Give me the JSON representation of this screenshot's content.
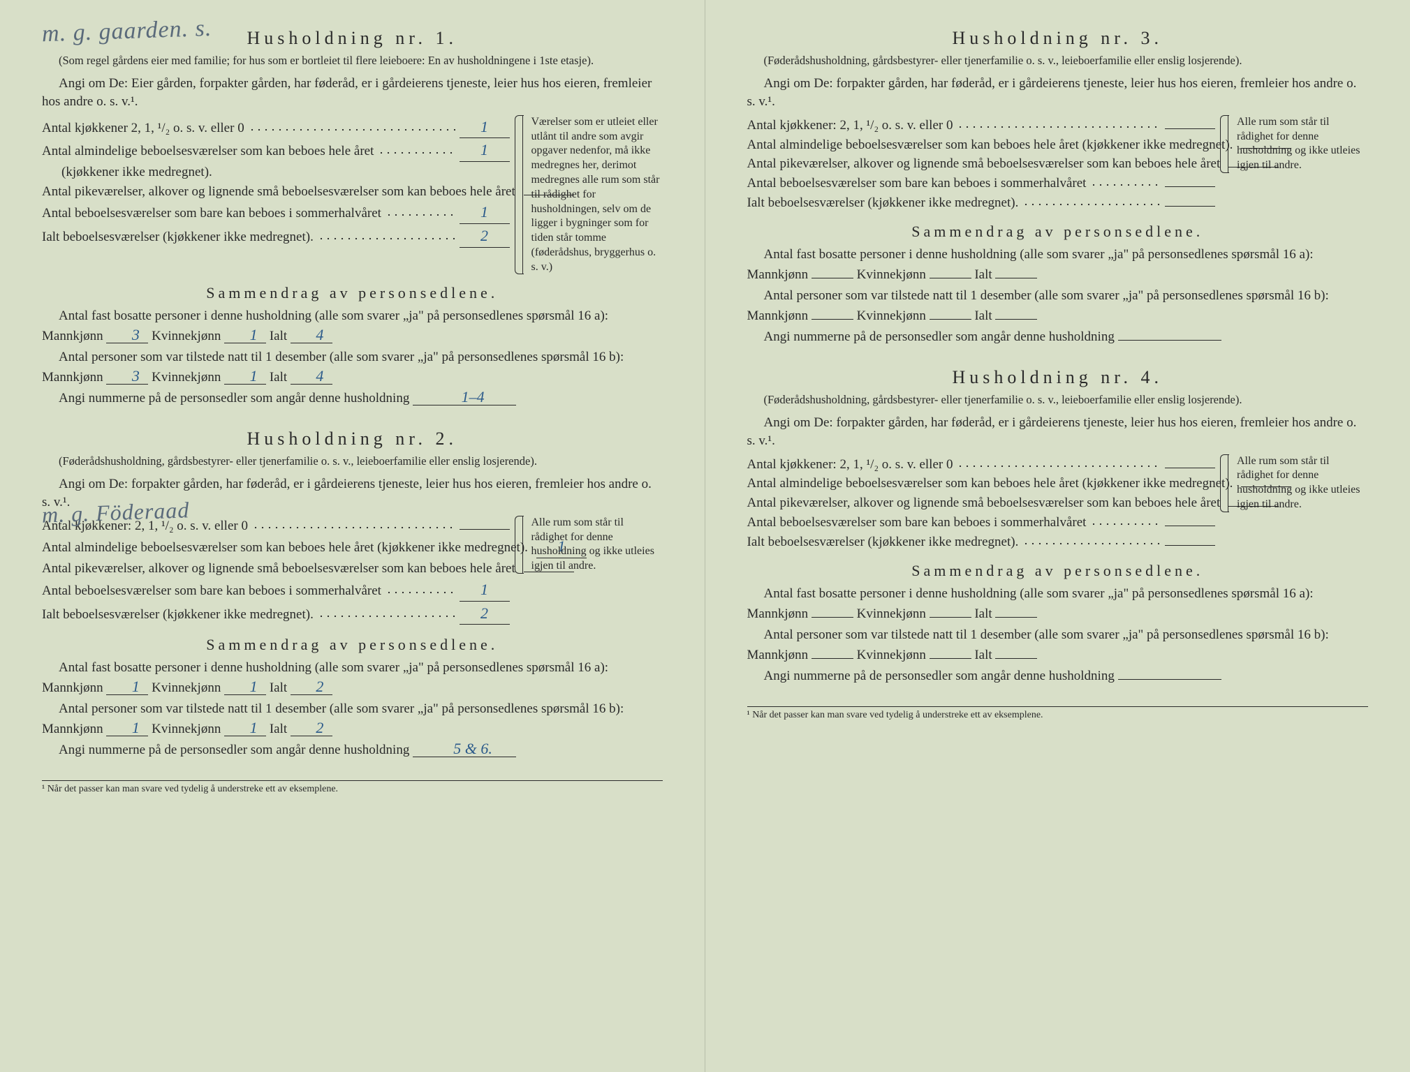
{
  "handwriting": {
    "top1": "m. g. gaarden. s.",
    "top2": "m. g. Föderaad"
  },
  "colors": {
    "paper": "#d8dfc8",
    "ink": "#2a2a2a",
    "pen": "#2b5a8a"
  },
  "households": [
    {
      "title": "Husholdning nr. 1.",
      "note": "(Som regel gårdens eier med familie; for hus som er bortleiet til flere leieboere: En av husholdningene i 1ste etasje).",
      "angi": "Angi om De: Eier gården, forpakter gården, har føderåd, er i gårdeierens tjeneste, leier hus hos eieren, fremleier hos andre o. s. v.¹.",
      "rows": [
        {
          "label": "Antal kjøkkener 2, 1, ¹/₂ o. s. v. eller 0",
          "val": "1"
        },
        {
          "label": "Antal almindelige beboelsesværelser som kan beboes hele året",
          "sub": "(kjøkkener ikke medregnet).",
          "val": "1"
        },
        {
          "label": "Antal pikeværelser, alkover og lignende små beboelsesværelser som kan beboes hele året",
          "val": ""
        },
        {
          "label": "Antal beboelsesværelser som bare kan beboes i sommerhalvåret",
          "val": "1"
        },
        {
          "label_total": "Ialt beboelsesværelser (kjøkkener ikke medregnet).",
          "val": "2"
        }
      ],
      "sidebox": "Værelser som er utleiet eller utlånt til andre som avgir opgaver nedenfor, må ikke medregnes her, derimot medregnes alle rum som står til rådighet for husholdningen, selv om de ligger i bygninger som for tiden står tomme (føderådshus, bryggerhus o. s. v.)",
      "sammendrag_title": "Sammendrag av personsedlene.",
      "p16a_text": "Antal fast bosatte personer i denne husholdning (alle som svarer „ja\" på personsedlenes spørsmål 16 a):",
      "p16a": {
        "m": "3",
        "k": "1",
        "i": "4"
      },
      "p16b_text": "Antal personer som var tilstede natt til 1 desember (alle som svarer „ja\" på personsedlenes spørsmål 16 b):",
      "p16b": {
        "m": "3",
        "k": "1",
        "i": "4"
      },
      "nummer_label": "Angi nummerne på de personsedler som angår denne husholdning",
      "nummer": "1–4"
    },
    {
      "title": "Husholdning nr. 2.",
      "note": "(Føderådshusholdning, gårdsbestyrer- eller tjenerfamilie o. s. v., leieboerfamilie eller enslig losjerende).",
      "angi": "Angi om De: forpakter gården, har føderåd, er i gårdeierens tjeneste, leier hus hos eieren, fremleier hos andre o. s. v.¹.",
      "rows": [
        {
          "label": "Antal kjøkkener: 2, 1, ¹/₂ o. s. v. eller 0",
          "val": ""
        },
        {
          "label": "Antal almindelige beboelsesværelser som kan beboes hele året (kjøkkener ikke medregnet).",
          "val": "1"
        },
        {
          "label": "Antal pikeværelser, alkover og lignende små beboelsesværelser som kan beboes hele året",
          "val": ""
        },
        {
          "label": "Antal beboelsesværelser som bare kan beboes i sommerhalvåret",
          "val": "1"
        },
        {
          "label_total": "Ialt beboelsesværelser (kjøkkener ikke medregnet).",
          "val": "2"
        }
      ],
      "sidebox": "Alle rum som står til rådighet for denne husholdning og ikke utleies igjen til andre.",
      "sammendrag_title": "Sammendrag av personsedlene.",
      "p16a_text": "Antal fast bosatte personer i denne husholdning (alle som svarer „ja\" på personsedlenes spørsmål 16 a):",
      "p16a": {
        "m": "1",
        "k": "1",
        "i": "2"
      },
      "p16b_text": "Antal personer som var tilstede natt til 1 desember (alle som svarer „ja\" på personsedlenes spørsmål 16 b):",
      "p16b": {
        "m": "1",
        "k": "1",
        "i": "2"
      },
      "nummer_label": "Angi nummerne på de personsedler som angår denne husholdning",
      "nummer": "5 & 6."
    },
    {
      "title": "Husholdning nr. 3.",
      "note": "(Føderådshusholdning, gårdsbestyrer- eller tjenerfamilie o. s. v., leieboerfamilie eller enslig losjerende).",
      "angi": "Angi om De: forpakter gården, har føderåd, er i gårdeierens tjeneste, leier hus hos eieren, fremleier hos andre o. s. v.¹.",
      "rows": [
        {
          "label": "Antal kjøkkener: 2, 1, ¹/₂ o. s. v. eller 0",
          "val": ""
        },
        {
          "label": "Antal almindelige beboelsesværelser som kan beboes hele året (kjøkkener ikke medregnet).",
          "val": ""
        },
        {
          "label": "Antal pikeværelser, alkover og lignende små beboelsesværelser som kan beboes hele året",
          "val": ""
        },
        {
          "label": "Antal beboelsesværelser som bare kan beboes i sommerhalvåret",
          "val": ""
        },
        {
          "label_total": "Ialt beboelsesværelser (kjøkkener ikke medregnet).",
          "val": ""
        }
      ],
      "sidebox": "Alle rum som står til rådighet for denne husholdning og ikke utleies igjen til andre.",
      "sammendrag_title": "Sammendrag av personsedlene.",
      "p16a_text": "Antal fast bosatte personer i denne husholdning (alle som svarer „ja\" på personsedlenes spørsmål 16 a):",
      "p16a": {
        "m": "",
        "k": "",
        "i": ""
      },
      "p16b_text": "Antal personer som var tilstede natt til 1 desember (alle som svarer „ja\" på personsedlenes spørsmål 16 b):",
      "p16b": {
        "m": "",
        "k": "",
        "i": ""
      },
      "nummer_label": "Angi nummerne på de personsedler som angår denne husholdning",
      "nummer": ""
    },
    {
      "title": "Husholdning nr. 4.",
      "note": "(Føderådshusholdning, gårdsbestyrer- eller tjenerfamilie o. s. v., leieboerfamilie eller enslig losjerende).",
      "angi": "Angi om De: forpakter gården, har føderåd, er i gårdeierens tjeneste, leier hus hos eieren, fremleier hos andre o. s. v.¹.",
      "rows": [
        {
          "label": "Antal kjøkkener: 2, 1, ¹/₂ o. s. v. eller 0",
          "val": ""
        },
        {
          "label": "Antal almindelige beboelsesværelser som kan beboes hele året (kjøkkener ikke medregnet).",
          "val": ""
        },
        {
          "label": "Antal pikeværelser, alkover og lignende små beboelsesværelser som kan beboes hele året",
          "val": ""
        },
        {
          "label": "Antal beboelsesværelser som bare kan beboes i sommerhalvåret",
          "val": ""
        },
        {
          "label_total": "Ialt beboelsesværelser (kjøkkener ikke medregnet).",
          "val": ""
        }
      ],
      "sidebox": "Alle rum som står til rådighet for denne husholdning og ikke utleies igjen til andre.",
      "sammendrag_title": "Sammendrag av personsedlene.",
      "p16a_text": "Antal fast bosatte personer i denne husholdning (alle som svarer „ja\" på personsedlenes spørsmål 16 a):",
      "p16a": {
        "m": "",
        "k": "",
        "i": ""
      },
      "p16b_text": "Antal personer som var tilstede natt til 1 desember (alle som svarer „ja\" på personsedlenes spørsmål 16 b):",
      "p16b": {
        "m": "",
        "k": "",
        "i": ""
      },
      "nummer_label": "Angi nummerne på de personsedler som angår denne husholdning",
      "nummer": ""
    }
  ],
  "labels": {
    "mann": "Mannkjønn",
    "kvinne": "Kvinnekjønn",
    "ialt": "Ialt"
  },
  "footnote": "¹ Når det passer kan man svare ved tydelig å understreke ett av eksemplene."
}
